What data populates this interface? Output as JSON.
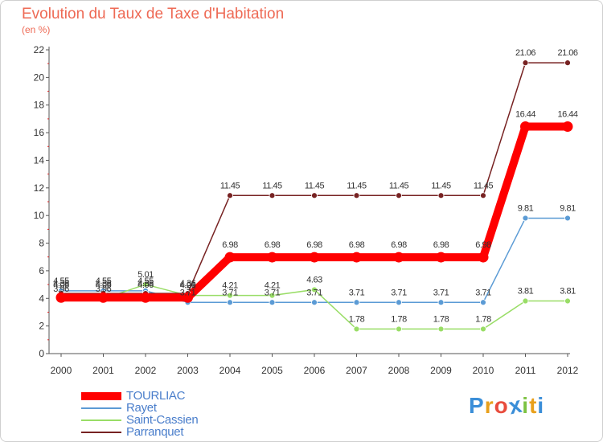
{
  "chart_data": {
    "type": "line",
    "title": "Evolution du Taux de Taxe d'Habitation",
    "subtitle": "(en %)",
    "xlabel": "",
    "ylabel": "(en %)",
    "x": [
      "2000",
      "2001",
      "2002",
      "2003",
      "2004",
      "2005",
      "2006",
      "2007",
      "2008",
      "2009",
      "2010",
      "2011",
      "2012"
    ],
    "ylim": [
      0,
      22
    ],
    "yticks": [
      0,
      2,
      4,
      6,
      8,
      10,
      12,
      14,
      16,
      18,
      20,
      22
    ],
    "grid": false,
    "legend_position": "bottom-left",
    "series": [
      {
        "name": "TOURLIAC",
        "color": "#ff0000",
        "emphasis": true,
        "values": [
          4.06,
          4.06,
          4.06,
          4.06,
          6.98,
          6.98,
          6.98,
          6.98,
          6.98,
          6.98,
          6.98,
          16.44,
          16.44
        ],
        "labels": [
          "4.06",
          "4.06",
          "4.06",
          "4.06",
          "6.98",
          "6.98",
          "6.98",
          "6.98",
          "6.98",
          "6.98",
          "6.98",
          "16.44",
          "16.44"
        ]
      },
      {
        "name": "Rayet",
        "color": "#5b9bd5",
        "values": [
          4.55,
          4.55,
          4.55,
          3.71,
          3.71,
          3.71,
          3.71,
          3.71,
          3.71,
          3.71,
          3.71,
          9.81,
          9.81
        ],
        "labels": [
          "4.55",
          "4.55",
          "4.55",
          "3.71",
          "3.71",
          "3.71",
          "3.71",
          "3.71",
          "3.71",
          "3.71",
          "3.71",
          "9.81",
          "9.81"
        ]
      },
      {
        "name": "Saint-Cassien",
        "color": "#99dd66",
        "values": [
          3.96,
          3.96,
          5.01,
          4.21,
          4.21,
          4.21,
          4.63,
          1.78,
          1.78,
          1.78,
          1.78,
          3.81,
          3.81
        ],
        "labels": [
          "3.96",
          "3.96",
          "5.01",
          "4.21",
          "4.21",
          "4.21",
          "4.63",
          "1.78",
          "1.78",
          "1.78",
          "1.78",
          "3.81",
          "3.81"
        ]
      },
      {
        "name": "Parranquet",
        "color": "#772222",
        "values": [
          4.36,
          4.36,
          4.36,
          4.36,
          11.45,
          11.45,
          11.45,
          11.45,
          11.45,
          11.45,
          11.45,
          21.06,
          21.06
        ],
        "labels": [
          "4.36",
          "4.36",
          "4.36",
          "4.36",
          "11.45",
          "11.45",
          "11.45",
          "11.45",
          "11.45",
          "11.45",
          "11.45",
          "21.06",
          "21.06"
        ]
      }
    ]
  },
  "brand": {
    "letters": [
      "P",
      "r",
      "o",
      "x",
      "i",
      "t",
      "i"
    ],
    "colors": [
      "#3a8ed8",
      "#e8a01c",
      "#e84c3d",
      "#3a8ed8",
      "#7dc242",
      "#e8a01c",
      "#3a8ed8"
    ]
  }
}
